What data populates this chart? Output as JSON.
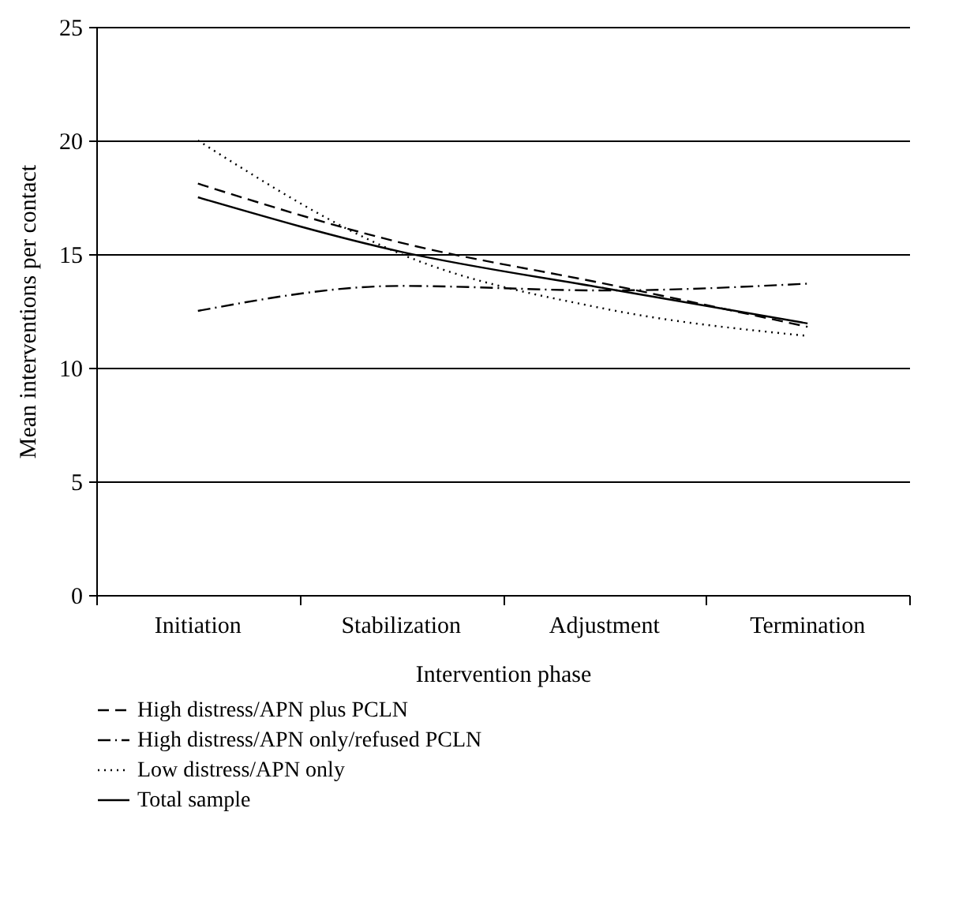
{
  "chart_data": {
    "type": "line",
    "xlabel": "Intervention phase",
    "ylabel": "Mean interventions per contact",
    "categories": [
      "Initiation",
      "Stabilization",
      "Adjustment",
      "Termination"
    ],
    "series": [
      {
        "name": "High distress/APN plus PCLN",
        "color": "#000000",
        "line_style": "dashed",
        "values": [
          18.1,
          15.5,
          13.7,
          11.8
        ]
      },
      {
        "name": "High distress/APN only/refused PCLN",
        "color": "#000000",
        "line_style": "dashdot",
        "values": [
          12.5,
          13.6,
          13.4,
          13.7
        ]
      },
      {
        "name": "Low distress/APN only",
        "color": "#000000",
        "line_style": "dotted",
        "values": [
          20,
          15,
          12.6,
          11.4
        ]
      },
      {
        "name": "Total sample",
        "color": "#000000",
        "line_style": "solid",
        "values": [
          17.5,
          15.1,
          13.5,
          11.95
        ]
      }
    ],
    "ylim": [
      0,
      25
    ],
    "yticks": [
      0,
      5,
      10,
      15,
      20,
      25
    ],
    "grid": "y",
    "legend": "bottom",
    "marker": "none"
  }
}
